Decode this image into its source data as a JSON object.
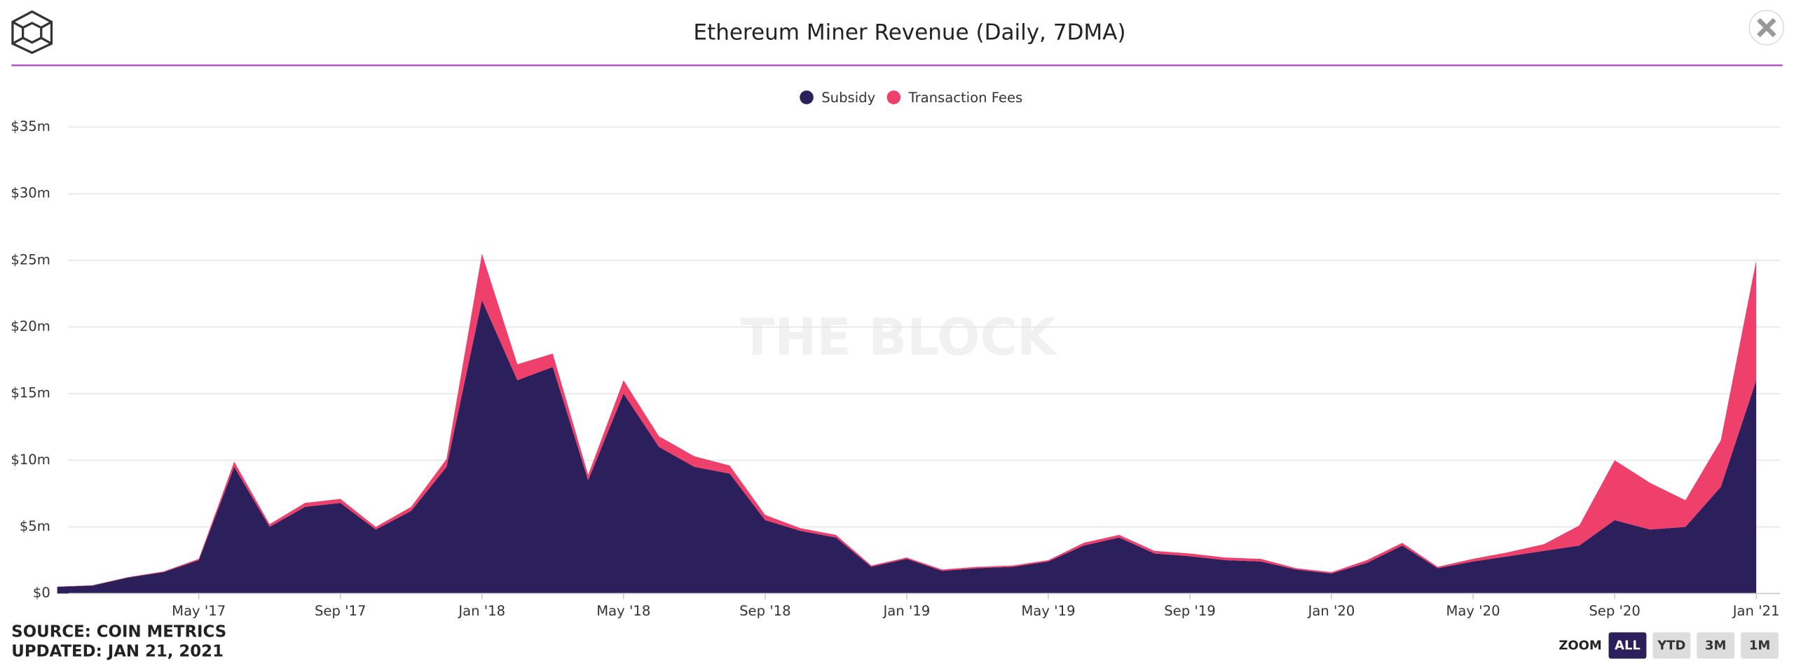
{
  "header": {
    "title": "Ethereum Miner Revenue (Daily, 7DMA)"
  },
  "chart_data": {
    "type": "stacked_area",
    "x": [
      "2017-01",
      "2017-02",
      "2017-03",
      "2017-04",
      "2017-05",
      "2017-06",
      "2017-07",
      "2017-08",
      "2017-09",
      "2017-10",
      "2017-11",
      "2017-12",
      "2018-01",
      "2018-02",
      "2018-03",
      "2018-04",
      "2018-05",
      "2018-06",
      "2018-07",
      "2018-08",
      "2018-09",
      "2018-10",
      "2018-11",
      "2018-12",
      "2019-01",
      "2019-02",
      "2019-03",
      "2019-04",
      "2019-05",
      "2019-06",
      "2019-07",
      "2019-08",
      "2019-09",
      "2019-10",
      "2019-11",
      "2019-12",
      "2020-01",
      "2020-02",
      "2020-03",
      "2020-04",
      "2020-05",
      "2020-06",
      "2020-07",
      "2020-08",
      "2020-09",
      "2020-10",
      "2020-11",
      "2020-12",
      "2021-01"
    ],
    "series": [
      {
        "name": "Subsidy",
        "color": "#2b1f5c",
        "values": [
          0.5,
          0.6,
          1.2,
          1.6,
          2.5,
          9.5,
          5.0,
          6.5,
          6.8,
          4.8,
          6.2,
          9.5,
          22,
          16,
          17,
          8.5,
          15,
          11,
          9.5,
          9,
          5.5,
          4.7,
          4.2,
          2.0,
          2.6,
          1.7,
          1.9,
          2.0,
          2.4,
          3.6,
          4.2,
          3.0,
          2.8,
          2.5,
          2.4,
          1.8,
          1.5,
          2.3,
          3.6,
          1.9,
          2.4,
          2.8,
          3.2,
          3.6,
          5.5,
          4.8,
          5.0,
          8.0,
          16
        ]
      },
      {
        "name": "Transaction Fees",
        "color": "#ef3f6b",
        "values": [
          0.02,
          0.02,
          0.03,
          0.05,
          0.1,
          0.4,
          0.2,
          0.3,
          0.3,
          0.2,
          0.3,
          0.6,
          3.5,
          1.2,
          1.0,
          0.4,
          1.0,
          0.8,
          0.8,
          0.6,
          0.4,
          0.2,
          0.2,
          0.1,
          0.1,
          0.1,
          0.1,
          0.1,
          0.1,
          0.2,
          0.2,
          0.2,
          0.2,
          0.2,
          0.2,
          0.1,
          0.1,
          0.2,
          0.2,
          0.1,
          0.2,
          0.3,
          0.5,
          1.5,
          4.5,
          3.5,
          2.0,
          3.5,
          9
        ]
      }
    ],
    "xlim": [
      "2017-01",
      "2021-01"
    ],
    "xticks": [
      {
        "value": "2017-05",
        "label": "May '17"
      },
      {
        "value": "2017-09",
        "label": "Sep '17"
      },
      {
        "value": "2018-01",
        "label": "Jan '18"
      },
      {
        "value": "2018-05",
        "label": "May '18"
      },
      {
        "value": "2018-09",
        "label": "Sep '18"
      },
      {
        "value": "2019-01",
        "label": "Jan '19"
      },
      {
        "value": "2019-05",
        "label": "May '19"
      },
      {
        "value": "2019-09",
        "label": "Sep '19"
      },
      {
        "value": "2020-01",
        "label": "Jan '20"
      },
      {
        "value": "2020-05",
        "label": "May '20"
      },
      {
        "value": "2020-09",
        "label": "Sep '20"
      },
      {
        "value": "2021-01",
        "label": "Jan '21"
      }
    ],
    "ylim": [
      0,
      35
    ],
    "yticks": [
      {
        "value": 0,
        "label": "$0"
      },
      {
        "value": 5,
        "label": "$5m"
      },
      {
        "value": 10,
        "label": "$10m"
      },
      {
        "value": 15,
        "label": "$15m"
      },
      {
        "value": 20,
        "label": "$20m"
      },
      {
        "value": 25,
        "label": "$25m"
      },
      {
        "value": 30,
        "label": "$30m"
      },
      {
        "value": 35,
        "label": "$35m"
      }
    ],
    "grid": true,
    "legend": "top",
    "watermark": "THE BLOCK"
  },
  "footer": {
    "source": "SOURCE: COIN METRICS",
    "updated": "UPDATED: JAN 21, 2021",
    "zoom_label": "ZOOM",
    "zoom_buttons": [
      "ALL",
      "YTD",
      "3M",
      "1M"
    ]
  }
}
